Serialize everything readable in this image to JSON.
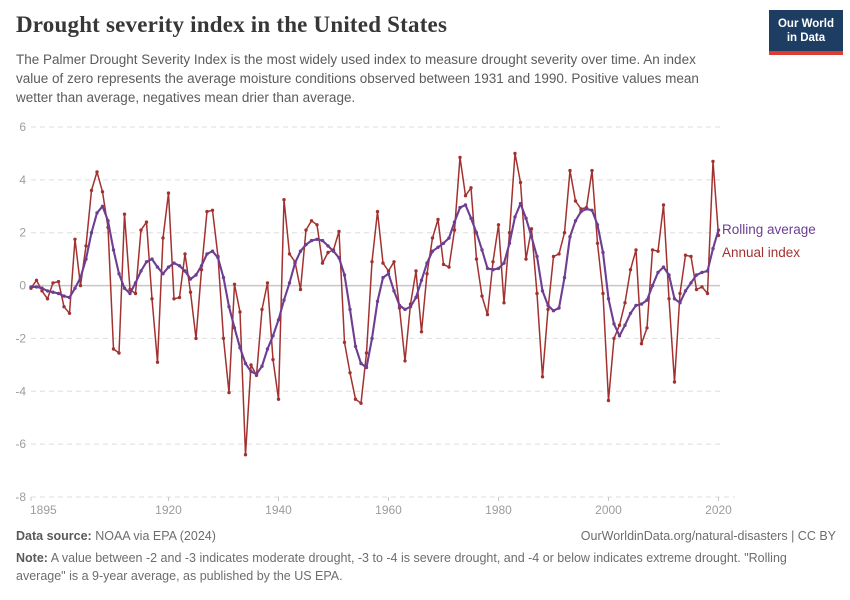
{
  "header": {
    "subtitle": "The Palmer Drought Severity Index is the most widely used index to measure drought severity over time. An index value of zero represents the average moisture conditions observed between 1931 and 1990. Positive values mean wetter than average, negatives mean drier than average.",
    "logo": {
      "line1": "Our World",
      "line2": "in Data"
    }
  },
  "chart_data": {
    "type": "line",
    "title": "Drought severity index in the United States",
    "xlabel": "",
    "ylabel": "",
    "x_start_year": 1895,
    "x_domain": [
      1895,
      2023
    ],
    "x_ticks": [
      1895,
      1920,
      1940,
      1960,
      1980,
      2000,
      2020
    ],
    "y_domain": [
      -8,
      6
    ],
    "y_ticks": [
      6,
      4,
      2,
      0,
      -2,
      -4,
      -6,
      -8
    ],
    "grid": "dashed-horizontal",
    "zero_line": true,
    "legend_position": "right",
    "rolling_window_note": "9-year average",
    "series": [
      {
        "name": "Annual index",
        "color": "#a23230",
        "values": [
          -0.1,
          0.2,
          -0.2,
          -0.5,
          0.1,
          0.15,
          -0.8,
          -1.05,
          1.75,
          0.0,
          1.5,
          3.6,
          4.3,
          3.55,
          2.2,
          -2.4,
          -2.55,
          2.7,
          -0.15,
          -0.3,
          2.1,
          2.4,
          -0.5,
          -2.9,
          1.8,
          3.5,
          -0.5,
          -0.45,
          1.2,
          -0.25,
          -2.0,
          0.6,
          2.8,
          2.85,
          1.1,
          -2.0,
          -4.05,
          0.05,
          -1.0,
          -6.4,
          -3.0,
          -3.4,
          -0.9,
          0.1,
          -2.8,
          -4.3,
          3.25,
          1.2,
          0.9,
          -0.15,
          2.1,
          2.45,
          2.3,
          0.85,
          1.25,
          1.35,
          2.05,
          -2.15,
          -3.3,
          -4.3,
          -4.45,
          -2.55,
          0.9,
          2.8,
          0.85,
          0.55,
          0.9,
          -0.85,
          -2.85,
          -0.7,
          0.55,
          -1.75,
          0.45,
          1.8,
          2.5,
          0.8,
          0.7,
          2.1,
          4.85,
          3.4,
          3.7,
          1.0,
          -0.4,
          -1.1,
          0.9,
          2.3,
          -0.65,
          2.0,
          5.0,
          3.9,
          1.0,
          2.15,
          -0.3,
          -3.45,
          -0.9,
          1.1,
          1.2,
          2.0,
          4.35,
          3.2,
          2.9,
          2.95,
          4.35,
          1.6,
          -0.3,
          -4.35,
          -2.0,
          -1.5,
          -0.65,
          0.6,
          1.35,
          -2.2,
          -1.6,
          1.35,
          1.3,
          3.05,
          -0.5,
          -3.65,
          -0.3,
          1.15,
          1.1,
          -0.15,
          -0.05,
          -0.3,
          4.7,
          1.9
        ]
      },
      {
        "name": "Rolling average",
        "color": "#6d3e91",
        "values": [
          -0.05,
          -0.05,
          -0.1,
          -0.2,
          -0.25,
          -0.3,
          -0.4,
          -0.45,
          -0.1,
          0.3,
          1.0,
          2.0,
          2.75,
          3.0,
          2.45,
          1.35,
          0.45,
          -0.1,
          -0.3,
          0.1,
          0.55,
          0.9,
          1.0,
          0.7,
          0.45,
          0.7,
          0.85,
          0.75,
          0.55,
          0.25,
          0.4,
          0.75,
          1.2,
          1.3,
          1.05,
          0.3,
          -0.8,
          -1.6,
          -2.35,
          -2.95,
          -3.25,
          -3.35,
          -3.05,
          -2.4,
          -1.9,
          -1.3,
          -0.55,
          0.1,
          0.85,
          1.3,
          1.55,
          1.7,
          1.75,
          1.7,
          1.5,
          1.3,
          1.05,
          0.4,
          -0.9,
          -2.3,
          -2.95,
          -3.1,
          -2.0,
          -0.6,
          0.3,
          0.45,
          -0.2,
          -0.75,
          -0.9,
          -0.8,
          -0.45,
          0.2,
          0.85,
          1.3,
          1.45,
          1.6,
          1.8,
          2.4,
          2.95,
          3.05,
          2.55,
          2.0,
          1.35,
          0.65,
          0.6,
          0.65,
          0.85,
          1.6,
          2.6,
          3.1,
          2.55,
          1.85,
          1.1,
          -0.2,
          -0.75,
          -0.95,
          -0.85,
          0.3,
          1.85,
          2.45,
          2.8,
          2.9,
          2.85,
          2.3,
          1.25,
          -0.5,
          -1.45,
          -1.9,
          -1.5,
          -1.05,
          -0.75,
          -0.7,
          -0.55,
          0.0,
          0.5,
          0.7,
          0.4,
          -0.5,
          -0.65,
          -0.2,
          0.1,
          0.4,
          0.5,
          0.55,
          1.4,
          2.1
        ]
      }
    ]
  },
  "footer": {
    "source_label": "Data source:",
    "source_value": "NOAA via EPA (2024)",
    "link": "OurWorldinData.org/natural-disasters",
    "license": " | CC BY",
    "note_label": "Note:",
    "note_text": "A value between -2 and -3 indicates moderate drought, -3 to -4 is severe drought, and -4 or below indicates extreme drought. \"Rolling average\" is a 9-year average, as published by the US EPA."
  }
}
